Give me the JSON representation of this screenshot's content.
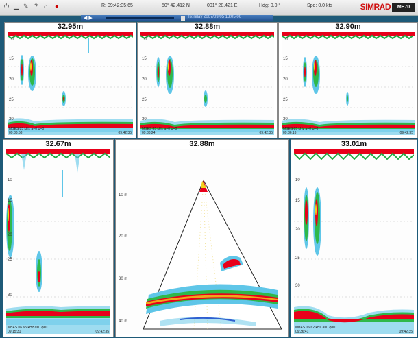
{
  "toolbar": {
    "time": "R: 09:42:35:65",
    "latitude": "50° 42.412 N",
    "longitude": "001° 28.421 E",
    "heading": "Hdg: 0.0 °",
    "speed": "Spd: 0.0 kts",
    "brand": "SIMRAD",
    "badge": "ME70",
    "file_label": "Tx relay 2007/09/05 13:05:00"
  },
  "panels": {
    "p1": {
      "title": "32.95m",
      "depths": [
        "10",
        "15",
        "20",
        "25",
        "30"
      ],
      "start": "09:36:58",
      "end": "09:42:35",
      "info": "MBES 85 kHz a=0 φ=0"
    },
    "p2": {
      "title": "32.88m",
      "depths": [
        "10",
        "15",
        "20",
        "25",
        "30"
      ],
      "start": "09:36:24",
      "end": "09:42:35",
      "info": "MBES 85 kHz a=0 φ=0"
    },
    "p3": {
      "title": "32.90m",
      "depths": [
        "10",
        "15",
        "20",
        "25",
        "30"
      ],
      "start": "09:36:16",
      "end": "09:42:35",
      "info": "MBES 85 kHz a=0 φ=0"
    },
    "p4": {
      "title": "32.67m",
      "depths": [
        "10",
        "15",
        "20",
        "25",
        "30"
      ],
      "start": "09:15:31",
      "end": "09:42:35",
      "info": "MBES 06 65 kHz a=0 φ=0"
    },
    "p5": {
      "title": "32.88m",
      "depths": [
        "10 m",
        "20 m",
        "30 m",
        "40 m"
      ]
    },
    "p6": {
      "title": "33.01m",
      "depths": [
        "10",
        "15",
        "20",
        "25",
        "30"
      ],
      "start": "09:36:41",
      "end": "09:42:35",
      "info": "MBES 06 62 kHz a=0 φ=0"
    }
  },
  "colors": {
    "seabed_red": "#e8001a",
    "echo_green": "#2fb84a",
    "echo_cyan": "#5fc6e8",
    "echo_yellow": "#f2d11a",
    "surface_green": "#22aa44"
  }
}
